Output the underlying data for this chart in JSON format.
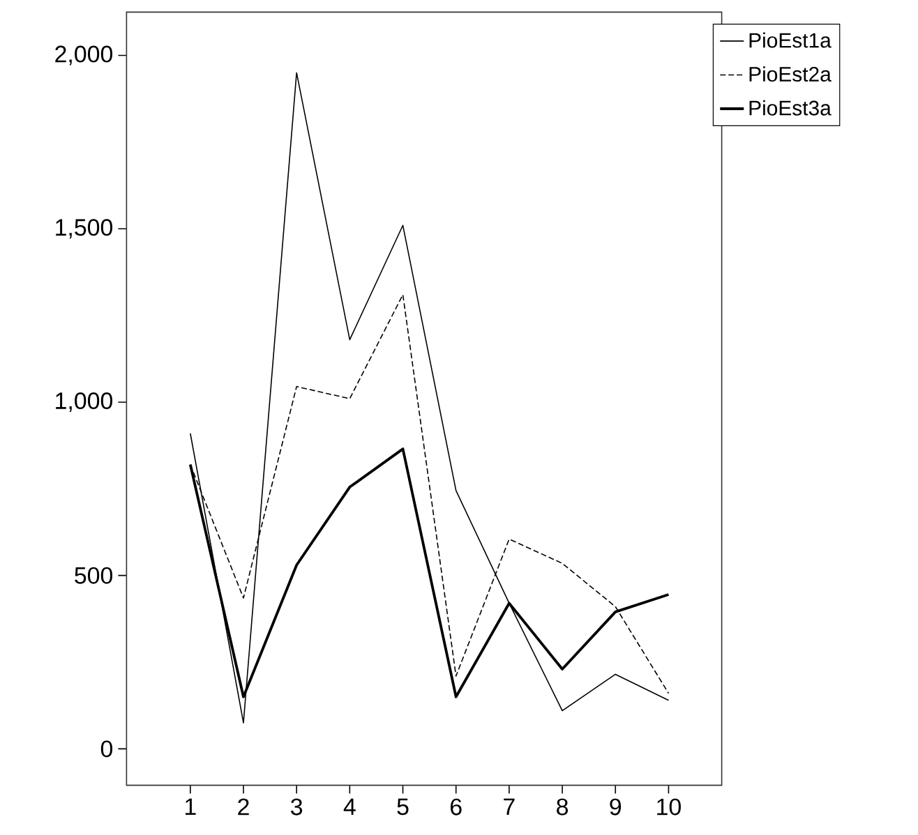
{
  "chart_data": {
    "type": "line",
    "x": [
      1,
      2,
      3,
      4,
      5,
      6,
      7,
      8,
      9,
      10
    ],
    "xlim": [
      -0.2,
      11
    ],
    "xticks": [
      1,
      2,
      3,
      4,
      5,
      6,
      7,
      8,
      9,
      10
    ],
    "ylim": [
      -105,
      2125
    ],
    "yticks": [
      0,
      500,
      {
        "value": 1000,
        "label": "1,000"
      },
      {
        "value": 1500,
        "label": "1,500"
      },
      {
        "value": 2000,
        "label": "2,000"
      }
    ],
    "grid": false,
    "legend": "top right",
    "marker": "none",
    "series": [
      {
        "name": "PioEst1a",
        "color": "#000000",
        "line_style": "solid",
        "values": [
          910,
          75,
          1950,
          1180,
          1510,
          745,
          420,
          110,
          215,
          140
        ]
      },
      {
        "name": "PioEst2a",
        "color": "#000000",
        "line_style": "dashed",
        "values": [
          820,
          435,
          1045,
          1010,
          1310,
          210,
          605,
          535,
          410,
          160
        ]
      },
      {
        "name": "PioEst3a",
        "color": "#000000",
        "line_style": "solid",
        "values": [
          820,
          150,
          530,
          755,
          865,
          150,
          420,
          230,
          395,
          445
        ]
      }
    ]
  }
}
